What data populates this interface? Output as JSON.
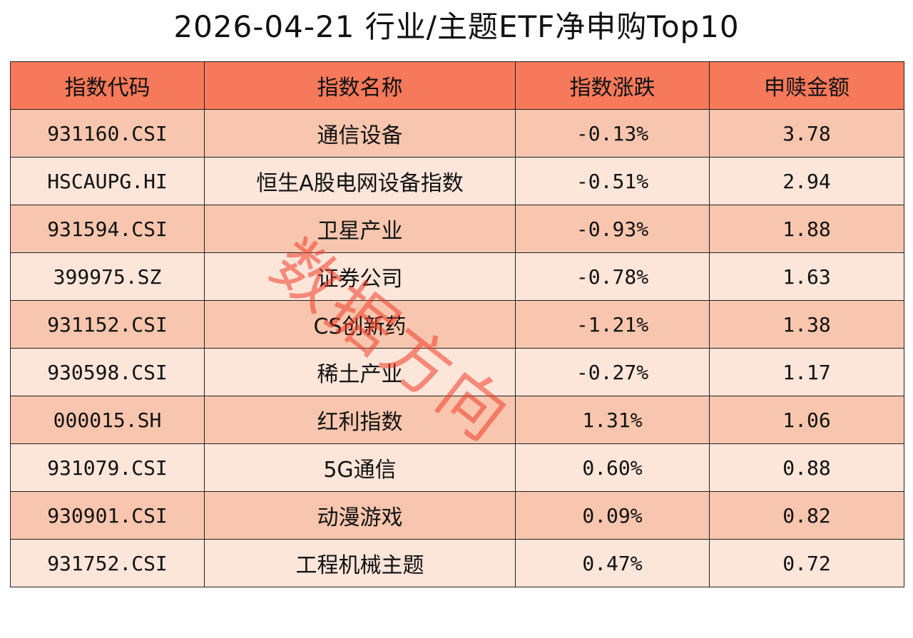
{
  "chart_data": {
    "type": "table",
    "title": "2026-04-21 行业/主题ETF净申购Top10",
    "columns": [
      "指数代码",
      "指数名称",
      "指数涨跌",
      "申赎金额"
    ],
    "rows": [
      [
        "931160.CSI",
        "通信设备",
        "-0.13%",
        "3.78"
      ],
      [
        "HSCAUPG.HI",
        "恒生A股电网设备指数",
        "-0.51%",
        "2.94"
      ],
      [
        "931594.CSI",
        "卫星产业",
        "-0.93%",
        "1.88"
      ],
      [
        "399975.SZ",
        "证券公司",
        "-0.78%",
        "1.63"
      ],
      [
        "931152.CSI",
        "CS创新药",
        "-1.21%",
        "1.38"
      ],
      [
        "930598.CSI",
        "稀土产业",
        "-0.27%",
        "1.17"
      ],
      [
        "000015.SH",
        "红利指数",
        "1.31%",
        "1.06"
      ],
      [
        "931079.CSI",
        "5G通信",
        "0.60%",
        "0.88"
      ],
      [
        "930901.CSI",
        "动漫游戏",
        "0.09%",
        "0.82"
      ],
      [
        "931752.CSI",
        "工程机械主题",
        "0.47%",
        "0.72"
      ]
    ],
    "watermark": "数据方向",
    "colors": {
      "header_bg": "#F5795A",
      "row_odd_bg": "#F8C6AE",
      "row_even_bg": "#FCE5D9",
      "watermark": "#EE3C28"
    }
  }
}
